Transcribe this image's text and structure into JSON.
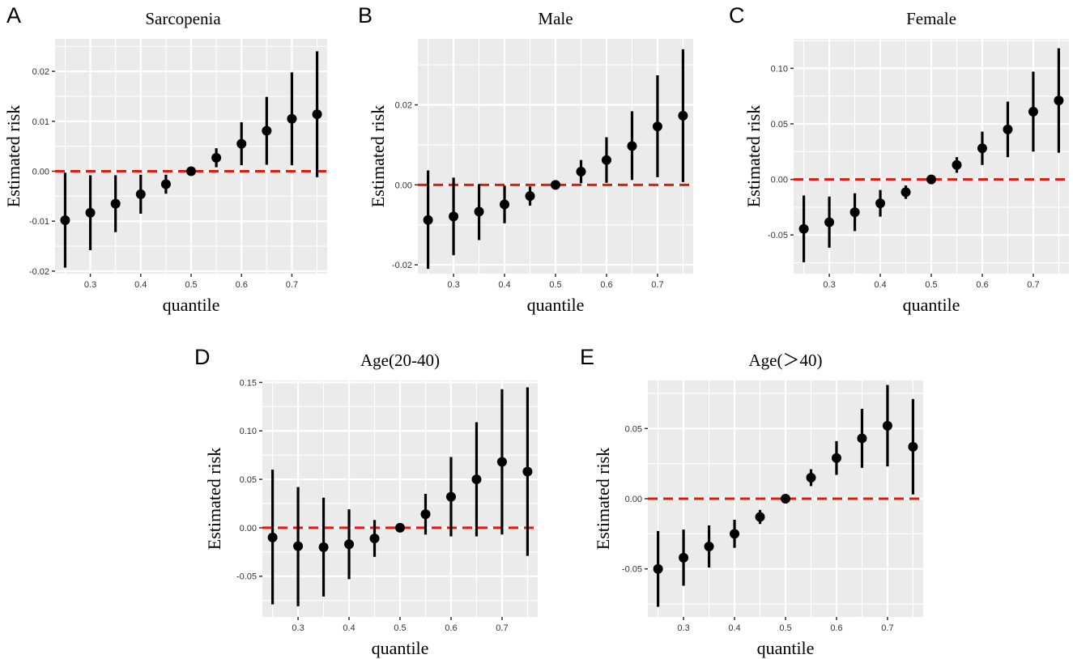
{
  "chart_data": [
    {
      "type": "scatter",
      "letter": "A",
      "title": "Sarcopenia",
      "xlabel": "quantile",
      "ylabel": "Estimated risk",
      "xlim": [
        0.23,
        0.77
      ],
      "ylim": [
        -0.0205,
        0.0265
      ],
      "xticks": [
        0.3,
        0.4,
        0.5,
        0.6,
        0.7
      ],
      "xtick_labels": [
        "0.3",
        "0.4",
        "0.5",
        "0.6",
        "0.7"
      ],
      "yticks": [
        -0.02,
        -0.01,
        0.0,
        0.01,
        0.02
      ],
      "ytick_labels": [
        "-0.02",
        "-0.01",
        "0.00",
        "0.01",
        "0.02"
      ],
      "reference_line": 0,
      "x": [
        0.25,
        0.3,
        0.35,
        0.4,
        0.45,
        0.5,
        0.55,
        0.6,
        0.65,
        0.7,
        0.75
      ],
      "estimate": [
        -0.0098,
        -0.0083,
        -0.0065,
        -0.0046,
        -0.0026,
        0.0,
        0.0027,
        0.0055,
        0.0081,
        0.0105,
        0.0114
      ],
      "lower": [
        -0.0193,
        -0.0158,
        -0.0122,
        -0.0085,
        -0.0045,
        0.0,
        0.0008,
        0.0012,
        0.0013,
        0.0012,
        -0.0012
      ],
      "upper": [
        -0.0003,
        -0.0008,
        -0.0008,
        -0.0007,
        -0.0007,
        0.0,
        0.0046,
        0.0098,
        0.0149,
        0.0198,
        0.024
      ]
    },
    {
      "type": "scatter",
      "letter": "B",
      "title": "Male",
      "xlabel": "quantile",
      "ylabel": "Estimated risk",
      "xlim": [
        0.23,
        0.77
      ],
      "ylim": [
        -0.0222,
        0.0365
      ],
      "xticks": [
        0.3,
        0.4,
        0.5,
        0.6,
        0.7
      ],
      "xtick_labels": [
        "0.3",
        "0.4",
        "0.5",
        "0.6",
        "0.7"
      ],
      "yticks": [
        -0.02,
        0.0,
        0.02
      ],
      "ytick_labels": [
        "-0.02",
        "0.00",
        "0.02"
      ],
      "reference_line": 0,
      "x": [
        0.25,
        0.3,
        0.35,
        0.4,
        0.45,
        0.5,
        0.55,
        0.6,
        0.65,
        0.7,
        0.75
      ],
      "estimate": [
        -0.0088,
        -0.0079,
        -0.0067,
        -0.0049,
        -0.0028,
        0.0,
        0.0033,
        0.0062,
        0.0097,
        0.0146,
        0.0173
      ],
      "lower": [
        -0.021,
        -0.0176,
        -0.0138,
        -0.0096,
        -0.0052,
        0.0,
        0.0004,
        0.0005,
        0.0012,
        0.0019,
        0.0007
      ],
      "upper": [
        0.0036,
        0.0018,
        0.0002,
        -0.0002,
        -0.0004,
        0.0,
        0.0062,
        0.0119,
        0.0184,
        0.0274,
        0.0339
      ]
    },
    {
      "type": "scatter",
      "letter": "C",
      "title": "Female",
      "xlabel": "quantile",
      "ylabel": "Estimated risk",
      "xlim": [
        0.23,
        0.77
      ],
      "ylim": [
        -0.0848,
        0.1265
      ],
      "xticks": [
        0.3,
        0.4,
        0.5,
        0.6,
        0.7
      ],
      "xtick_labels": [
        "0.3",
        "0.4",
        "0.5",
        "0.6",
        "0.7"
      ],
      "yticks": [
        -0.05,
        0.0,
        0.05,
        0.1
      ],
      "ytick_labels": [
        "-0.05",
        "0.00",
        "0.05",
        "0.10"
      ],
      "reference_line": 0,
      "x": [
        0.25,
        0.3,
        0.35,
        0.4,
        0.45,
        0.5,
        0.55,
        0.6,
        0.65,
        0.7,
        0.75
      ],
      "estimate": [
        -0.0445,
        -0.0385,
        -0.0295,
        -0.0215,
        -0.0115,
        0.0,
        0.013,
        0.028,
        0.045,
        0.061,
        0.071
      ],
      "lower": [
        -0.0745,
        -0.0615,
        -0.0465,
        -0.0335,
        -0.0175,
        0.0,
        0.006,
        0.013,
        0.02,
        0.025,
        0.024
      ],
      "upper": [
        -0.0145,
        -0.0155,
        -0.0125,
        -0.0095,
        -0.0055,
        0.0,
        0.02,
        0.043,
        0.07,
        0.097,
        0.118
      ]
    },
    {
      "type": "scatter",
      "letter": "D",
      "title": "Age(20-40)",
      "xlabel": "quantile",
      "ylabel": "Estimated risk",
      "xlim": [
        0.23,
        0.77
      ],
      "ylim": [
        -0.092,
        0.152
      ],
      "xticks": [
        0.3,
        0.4,
        0.5,
        0.6,
        0.7
      ],
      "xtick_labels": [
        "0.3",
        "0.4",
        "0.5",
        "0.6",
        "0.7"
      ],
      "yticks": [
        -0.05,
        0.0,
        0.05,
        0.1,
        0.15
      ],
      "ytick_labels": [
        "-0.05",
        "0.00",
        "0.05",
        "0.10",
        "0.15"
      ],
      "reference_line": 0,
      "x": [
        0.25,
        0.3,
        0.35,
        0.4,
        0.45,
        0.5,
        0.55,
        0.6,
        0.65,
        0.7,
        0.75
      ],
      "estimate": [
        -0.01,
        -0.019,
        -0.02,
        -0.017,
        -0.011,
        0.0,
        0.014,
        0.032,
        0.05,
        0.068,
        0.058
      ],
      "lower": [
        -0.079,
        -0.081,
        -0.071,
        -0.053,
        -0.03,
        0.0,
        -0.007,
        -0.009,
        -0.009,
        -0.007,
        -0.029
      ],
      "upper": [
        0.06,
        0.042,
        0.031,
        0.019,
        0.008,
        0.0,
        0.035,
        0.073,
        0.109,
        0.143,
        0.145
      ]
    },
    {
      "type": "scatter",
      "letter": "E",
      "title": "Age(＞40)",
      "xlabel": "quantile",
      "ylabel": "Estimated risk",
      "xlim": [
        0.23,
        0.77
      ],
      "ylim": [
        -0.0842,
        0.0842
      ],
      "xticks": [
        0.3,
        0.4,
        0.5,
        0.6,
        0.7
      ],
      "xtick_labels": [
        "0.3",
        "0.4",
        "0.5",
        "0.6",
        "0.7"
      ],
      "yticks": [
        -0.05,
        0.0,
        0.05
      ],
      "ytick_labels": [
        "-0.05",
        "0.00",
        "0.05"
      ],
      "reference_line": 0,
      "x": [
        0.25,
        0.3,
        0.35,
        0.4,
        0.45,
        0.5,
        0.55,
        0.6,
        0.65,
        0.7,
        0.75
      ],
      "estimate": [
        -0.05,
        -0.042,
        -0.034,
        -0.025,
        -0.013,
        0.0,
        0.015,
        0.029,
        0.043,
        0.052,
        0.037
      ],
      "lower": [
        -0.077,
        -0.062,
        -0.049,
        -0.035,
        -0.018,
        0.0,
        0.009,
        0.017,
        0.022,
        0.023,
        0.003
      ],
      "upper": [
        -0.023,
        -0.022,
        -0.019,
        -0.015,
        -0.008,
        0.0,
        0.021,
        0.041,
        0.064,
        0.081,
        0.071
      ]
    }
  ],
  "colors": {
    "panel_bg": "#ebebeb",
    "grid": "#ffffff",
    "points": "#000000",
    "reference_line": "#dd1c0e"
  }
}
